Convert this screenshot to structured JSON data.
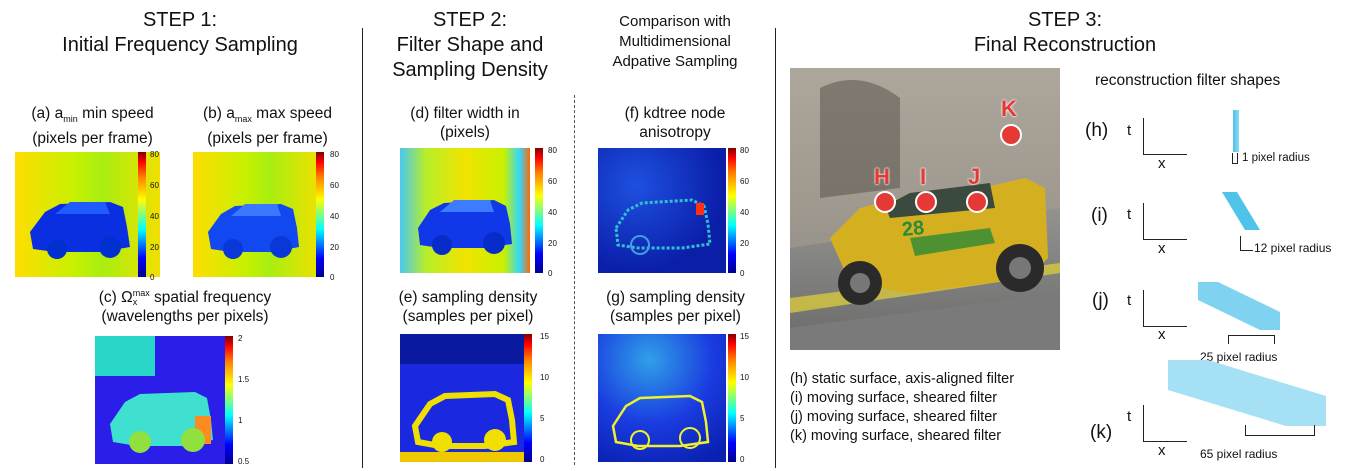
{
  "step1": {
    "title_line1": "STEP 1:",
    "title_line2": "Initial Frequency Sampling"
  },
  "step2": {
    "title_line1": "STEP 2:",
    "title_line2": "Filter Shape and",
    "title_line3": "Sampling Density"
  },
  "comparison": {
    "line1": "Comparison with",
    "line2": "Multidimensional",
    "line3": "Adpative Sampling"
  },
  "step3": {
    "title_line1": "STEP 3:",
    "title_line2": "Final Reconstruction"
  },
  "panels": {
    "a": {
      "line1_pre": "(a) a",
      "line1_sub": "min",
      "line1_post": " min speed",
      "line2": "(pixels per frame)",
      "ticks": [
        "80",
        "60",
        "40",
        "20",
        "0"
      ]
    },
    "b": {
      "line1_pre": "(b) a",
      "line1_sub": "max",
      "line1_post": " max speed",
      "line2": "(pixels per frame)",
      "ticks": [
        "80",
        "60",
        "40",
        "20",
        "0"
      ]
    },
    "c": {
      "line1_pre": "(c) Ω",
      "line1_sup": "max",
      "line1_sub": "x",
      "line1_post": " spatial frequency",
      "line2": "(wavelengths per pixels)",
      "ticks": [
        "2",
        "1.5",
        "1",
        "0.5"
      ]
    },
    "d": {
      "line1": "(d) filter width in",
      "line2": "(pixels)",
      "ticks": [
        "80",
        "60",
        "40",
        "20",
        "0"
      ]
    },
    "e": {
      "line1": "(e) sampling density",
      "line2": "(samples per pixel)",
      "ticks": [
        "15",
        "10",
        "5",
        "0"
      ]
    },
    "f": {
      "line1": "(f) kdtree node",
      "line2": "anisotropy",
      "ticks": [
        "80",
        "60",
        "40",
        "20",
        "0"
      ]
    },
    "g": {
      "line1": "(g) sampling density",
      "line2": "(samples per pixel)",
      "ticks": [
        "15",
        "10",
        "5",
        "0"
      ]
    }
  },
  "render": {
    "markers": [
      "K",
      "H",
      "I",
      "J"
    ],
    "car_number": "28"
  },
  "filters": {
    "heading": "reconstruction filter shapes",
    "rows": [
      {
        "label": "(h)",
        "t": "t",
        "x": "x",
        "radius": "1 pixel radius"
      },
      {
        "label": "(i)",
        "t": "t",
        "x": "x",
        "radius": "12 pixel radius"
      },
      {
        "label": "(j)",
        "t": "t",
        "x": "x",
        "radius": "25 pixel radius"
      },
      {
        "label": "(k)",
        "t": "t",
        "x": "x",
        "radius": "65 pixel radius"
      }
    ]
  },
  "legend": [
    "(h) static surface, axis-aligned filter",
    "(i) moving surface, sheared filter",
    "(j) moving surface, sheared filter",
    "(k) moving surface, sheared filter"
  ],
  "colors": {
    "jet": [
      "#00008f",
      "#0000ff",
      "#00ffff",
      "#7fff7f",
      "#ffff00",
      "#ff7f00",
      "#ff0000",
      "#7f0000"
    ],
    "marker": "#e53935",
    "filter_shape": "#4fc3ea"
  }
}
